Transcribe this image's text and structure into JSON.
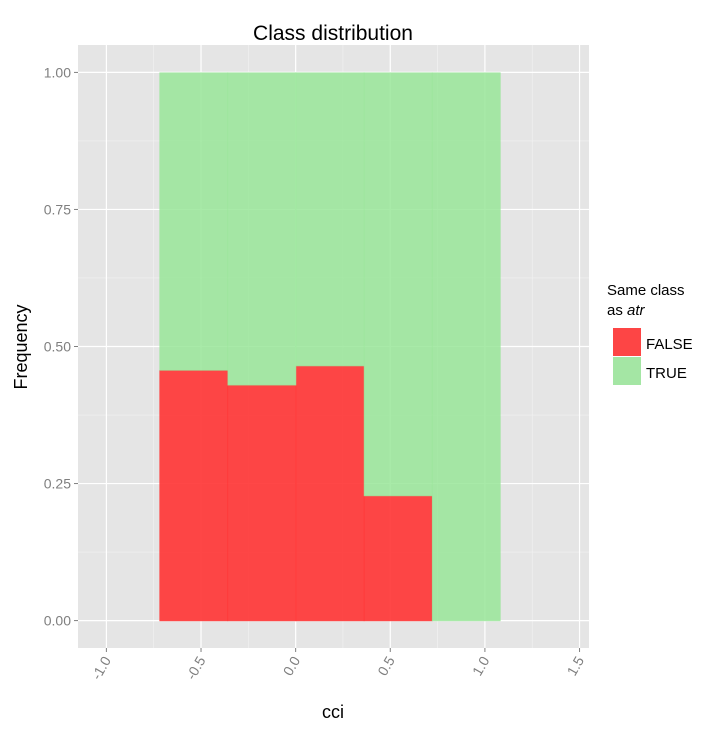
{
  "chart_data": {
    "type": "bar",
    "stacked": true,
    "position": "fill",
    "title": "Class distribution",
    "xlabel": "cci",
    "ylabel": "Frequency",
    "xlim": [
      -1.15,
      1.55
    ],
    "ylim": [
      -0.05,
      1.05
    ],
    "x_ticks": [
      "-1.0",
      "-0.5",
      "0.0",
      "0.5",
      "1.0",
      "1.5"
    ],
    "x_tick_values": [
      -1.0,
      -0.5,
      0.0,
      0.5,
      1.0,
      1.5
    ],
    "y_ticks": [
      "0.00",
      "0.25",
      "0.50",
      "0.75",
      "1.00"
    ],
    "y_tick_values": [
      0.0,
      0.25,
      0.5,
      0.75,
      1.0
    ],
    "bins": [
      {
        "x_start": -0.72,
        "x_end": -0.36
      },
      {
        "x_start": -0.36,
        "x_end": 0.0
      },
      {
        "x_start": 0.0,
        "x_end": 0.36
      },
      {
        "x_start": 0.36,
        "x_end": 0.72
      },
      {
        "x_start": 0.72,
        "x_end": 1.08
      }
    ],
    "series": [
      {
        "name": "FALSE",
        "color": "#ff3333",
        "values": [
          0.457,
          0.43,
          0.465,
          0.228,
          0.0
        ]
      },
      {
        "name": "TRUE",
        "color": "#99e699",
        "values": [
          0.543,
          0.57,
          0.535,
          0.772,
          1.0
        ]
      }
    ],
    "legend": {
      "title_line1": "Same class",
      "title_line2_prefix": "as ",
      "title_line2_italic": "atr",
      "position": "right"
    },
    "grid": true,
    "panel_background": "#e5e5e5",
    "x_tick_rotation_deg": -60
  }
}
